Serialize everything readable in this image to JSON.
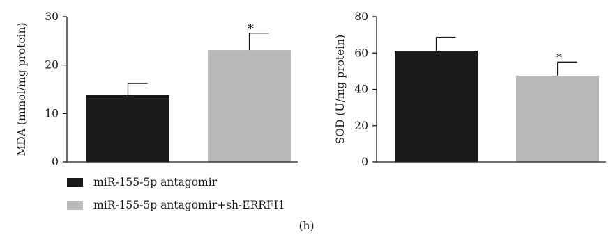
{
  "chart_data": [
    {
      "type": "bar",
      "categories": [
        "miR-155-5p antagomir",
        "miR-155-5p antagomir+sh-ERRFI1"
      ],
      "values": [
        13.8,
        23.1
      ],
      "errors": [
        2.4,
        3.5
      ],
      "significance": [
        "",
        "*"
      ],
      "ylabel": "MDA (mmol/mg protein)",
      "ylim": [
        0,
        30
      ],
      "yticks": [
        0,
        10,
        20,
        30
      ],
      "colors": [
        "#1a1a1a",
        "#b9b9b9"
      ]
    },
    {
      "type": "bar",
      "categories": [
        "miR-155-5p antagomir",
        "miR-155-5p antagomir+sh-ERRFI1"
      ],
      "values": [
        61.2,
        47.5
      ],
      "errors": [
        7.5,
        7.5
      ],
      "significance": [
        "",
        "*"
      ],
      "ylabel": "SOD (U/mg protein)",
      "ylim": [
        0,
        80
      ],
      "yticks": [
        0,
        20,
        40,
        60,
        80
      ],
      "colors": [
        "#1a1a1a",
        "#b9b9b9"
      ]
    }
  ],
  "legend": [
    {
      "label": "miR-155-5p antagomir",
      "color": "#1a1a1a"
    },
    {
      "label": "miR-155-5p antagomir+sh-ERRFI1",
      "color": "#b9b9b9"
    }
  ],
  "panel_label": "(h)"
}
